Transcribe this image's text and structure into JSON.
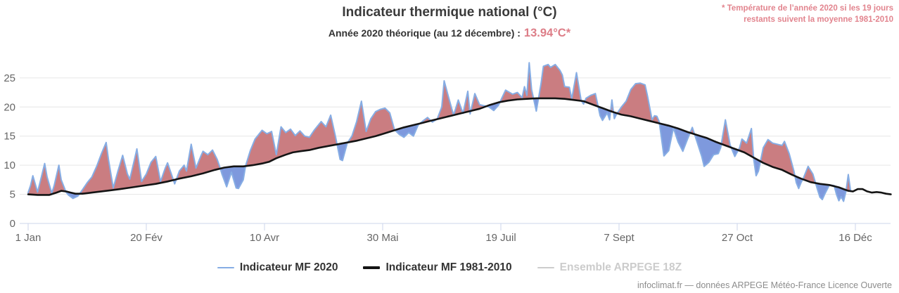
{
  "header": {
    "title": "Indicateur thermique national (°C)",
    "subtitle_label": "Année 2020 théorique (au 12 décembre) :",
    "subtitle_value": "13.94°C*",
    "annotation_line1": "* Température de l’année 2020 si les 19 jours",
    "annotation_line2": "restants suivent la moyenne 1981-2010"
  },
  "footer": {
    "credit": "infoclimat.fr — données ARPEGE Météo-France Licence Ouverte"
  },
  "colors": {
    "title_text": "#3a3a3a",
    "accent_pink": "#dd7e88",
    "annotation_pink": "#e2848e",
    "axis_text": "#666666",
    "grid_line": "#e6e6e6",
    "axis_line": "#ccd6eb",
    "above_fill": "#ca7d81",
    "below_fill": "#7e99dd",
    "line_2020": "#86ade4",
    "line_mean": "#141414",
    "disabled_legend": "#cccccc"
  },
  "chart_data": {
    "type": "line",
    "title": "Indicateur thermique national (°C)",
    "subtitle": "Année 2020 théorique (au 12 décembre) : 13.94°C*",
    "unit": "°C",
    "grid": "horizontal",
    "legend_position": "bottom-center",
    "x_axis": {
      "tick_days": [
        1,
        51,
        101,
        151,
        201,
        251,
        301,
        351
      ],
      "tick_labels": [
        "1 Jan",
        "20 Fév",
        "10 Avr",
        "30 Mai",
        "19 Juil",
        "7 Sept",
        "27 Oct",
        "16 Déc"
      ]
    },
    "y_axis": {
      "ticks": [
        0,
        5,
        10,
        15,
        20,
        25
      ],
      "min": 0,
      "max": 28
    },
    "fills": {
      "above": "#ca7d81",
      "below": "#7e99dd"
    },
    "series": [
      {
        "name": "Indicateur MF 2020",
        "color": "#86ade4",
        "width": 2,
        "disabled": false,
        "points": [
          [
            1,
            5.3
          ],
          [
            2,
            6.5
          ],
          [
            3,
            8.2
          ],
          [
            5,
            5.4
          ],
          [
            6,
            7.0
          ],
          [
            8,
            10.3
          ],
          [
            9,
            8.0
          ],
          [
            11,
            5.2
          ],
          [
            12,
            6.5
          ],
          [
            14,
            10.0
          ],
          [
            15,
            7.5
          ],
          [
            17,
            5.4
          ],
          [
            18,
            4.9
          ],
          [
            20,
            4.3
          ],
          [
            22,
            4.7
          ],
          [
            23,
            5.2
          ],
          [
            24,
            5.8
          ],
          [
            26,
            7.0
          ],
          [
            28,
            8.0
          ],
          [
            30,
            9.8
          ],
          [
            32,
            12.0
          ],
          [
            34,
            13.9
          ],
          [
            35,
            11.0
          ],
          [
            37,
            6.1
          ],
          [
            39,
            9.0
          ],
          [
            41,
            11.7
          ],
          [
            43,
            8.5
          ],
          [
            44,
            7.6
          ],
          [
            46,
            11.0
          ],
          [
            47,
            12.8
          ],
          [
            49,
            7.2
          ],
          [
            51,
            8.5
          ],
          [
            53,
            10.5
          ],
          [
            55,
            11.5
          ],
          [
            57,
            7.2
          ],
          [
            59,
            9.5
          ],
          [
            60,
            10.4
          ],
          [
            62,
            8.0
          ],
          [
            63,
            6.8
          ],
          [
            65,
            9.0
          ],
          [
            67,
            10.0
          ],
          [
            68,
            9.0
          ],
          [
            70,
            13.6
          ],
          [
            72,
            9.5
          ],
          [
            74,
            11.5
          ],
          [
            75,
            12.4
          ],
          [
            77,
            11.8
          ],
          [
            79,
            12.6
          ],
          [
            81,
            11.0
          ],
          [
            82,
            9.8
          ],
          [
            83,
            8.5
          ],
          [
            85,
            6.3
          ],
          [
            87,
            8.8
          ],
          [
            89,
            6.1
          ],
          [
            90,
            6.0
          ],
          [
            92,
            7.5
          ],
          [
            93,
            9.9
          ],
          [
            95,
            12.5
          ],
          [
            97,
            14.5
          ],
          [
            100,
            16.0
          ],
          [
            102,
            15.4
          ],
          [
            104,
            15.8
          ],
          [
            106,
            11.8
          ],
          [
            108,
            16.6
          ],
          [
            110,
            15.6
          ],
          [
            112,
            16.2
          ],
          [
            114,
            15.1
          ],
          [
            116,
            15.9
          ],
          [
            118,
            15.0
          ],
          [
            120,
            14.8
          ],
          [
            122,
            16.0
          ],
          [
            125,
            17.5
          ],
          [
            127,
            16.6
          ],
          [
            129,
            18.6
          ],
          [
            131,
            15.0
          ],
          [
            133,
            11.0
          ],
          [
            134,
            10.8
          ],
          [
            136,
            13.8
          ],
          [
            138,
            15.0
          ],
          [
            140,
            17.5
          ],
          [
            142,
            21.0
          ],
          [
            144,
            15.8
          ],
          [
            146,
            18.0
          ],
          [
            148,
            19.2
          ],
          [
            150,
            19.6
          ],
          [
            152,
            19.8
          ],
          [
            154,
            19.0
          ],
          [
            156,
            16.1
          ],
          [
            158,
            15.3
          ],
          [
            160,
            14.8
          ],
          [
            162,
            15.6
          ],
          [
            164,
            15.0
          ],
          [
            166,
            16.9
          ],
          [
            168,
            17.6
          ],
          [
            170,
            18.2
          ],
          [
            172,
            17.4
          ],
          [
            174,
            17.9
          ],
          [
            176,
            20.0
          ],
          [
            177,
            24.5
          ],
          [
            179,
            21.5
          ],
          [
            181,
            18.6
          ],
          [
            183,
            21.2
          ],
          [
            185,
            18.9
          ],
          [
            187,
            22.7
          ],
          [
            188,
            18.8
          ],
          [
            190,
            22.3
          ],
          [
            192,
            20.4
          ],
          [
            194,
            20.2
          ],
          [
            196,
            20.0
          ],
          [
            198,
            19.4
          ],
          [
            200,
            20.3
          ],
          [
            203,
            22.9
          ],
          [
            206,
            22.2
          ],
          [
            208,
            22.5
          ],
          [
            210,
            21.6
          ],
          [
            211,
            23.5
          ],
          [
            212,
            22.0
          ],
          [
            213,
            27.6
          ],
          [
            214,
            23.0
          ],
          [
            216,
            19.3
          ],
          [
            218,
            24.0
          ],
          [
            219,
            27.0
          ],
          [
            221,
            27.3
          ],
          [
            222,
            26.8
          ],
          [
            224,
            27.3
          ],
          [
            226,
            26.3
          ],
          [
            227,
            25.5
          ],
          [
            228,
            23.5
          ],
          [
            230,
            23.4
          ],
          [
            231,
            21.4
          ],
          [
            233,
            25.9
          ],
          [
            235,
            21.1
          ],
          [
            236,
            20.5
          ],
          [
            237,
            21.5
          ],
          [
            239,
            22.0
          ],
          [
            241,
            22.3
          ],
          [
            243,
            18.5
          ],
          [
            244,
            17.7
          ],
          [
            246,
            19.0
          ],
          [
            247,
            17.8
          ],
          [
            248,
            21.2
          ],
          [
            249,
            18.0
          ],
          [
            250,
            18.8
          ],
          [
            252,
            20.0
          ],
          [
            254,
            21.0
          ],
          [
            256,
            23.0
          ],
          [
            258,
            24.0
          ],
          [
            260,
            24.1
          ],
          [
            262,
            23.8
          ],
          [
            263,
            22.0
          ],
          [
            265,
            17.8
          ],
          [
            266,
            18.5
          ],
          [
            267,
            18.4
          ],
          [
            268,
            17.5
          ],
          [
            270,
            11.6
          ],
          [
            272,
            12.5
          ],
          [
            274,
            16.4
          ],
          [
            276,
            14.0
          ],
          [
            278,
            12.4
          ],
          [
            280,
            14.5
          ],
          [
            282,
            16.5
          ],
          [
            284,
            14.0
          ],
          [
            286,
            11.5
          ],
          [
            287,
            9.8
          ],
          [
            289,
            10.5
          ],
          [
            291,
            11.8
          ],
          [
            293,
            12.0
          ],
          [
            294,
            13.0
          ],
          [
            296,
            17.8
          ],
          [
            298,
            13.5
          ],
          [
            300,
            11.5
          ],
          [
            302,
            13.0
          ],
          [
            303,
            14.5
          ],
          [
            305,
            13.8
          ],
          [
            307,
            16.3
          ],
          [
            308,
            11.0
          ],
          [
            309,
            8.2
          ],
          [
            310,
            9.0
          ],
          [
            312,
            13.0
          ],
          [
            314,
            14.4
          ],
          [
            316,
            13.8
          ],
          [
            318,
            13.6
          ],
          [
            320,
            13.4
          ],
          [
            321,
            14.1
          ],
          [
            323,
            12.0
          ],
          [
            325,
            9.0
          ],
          [
            326,
            7.0
          ],
          [
            327,
            6.0
          ],
          [
            328,
            7.0
          ],
          [
            329,
            7.8
          ],
          [
            331,
            9.8
          ],
          [
            333,
            8.5
          ],
          [
            335,
            5.8
          ],
          [
            336,
            4.5
          ],
          [
            337,
            4.1
          ],
          [
            338,
            5.0
          ],
          [
            340,
            6.6
          ],
          [
            342,
            6.5
          ],
          [
            343,
            5.0
          ],
          [
            344,
            3.9
          ],
          [
            345,
            4.6
          ],
          [
            346,
            3.8
          ],
          [
            347,
            5.5
          ],
          [
            348,
            8.4
          ],
          [
            349,
            5.5
          ]
        ]
      },
      {
        "name": "Indicateur MF 1981-2010",
        "color": "#141414",
        "width": 2.6,
        "disabled": false,
        "points": [
          [
            1,
            5.0
          ],
          [
            5,
            4.9
          ],
          [
            10,
            4.9
          ],
          [
            13,
            5.3
          ],
          [
            15,
            5.6
          ],
          [
            17,
            5.5
          ],
          [
            19,
            5.3
          ],
          [
            21,
            5.1
          ],
          [
            24,
            5.1
          ],
          [
            28,
            5.3
          ],
          [
            32,
            5.5
          ],
          [
            36,
            5.7
          ],
          [
            40,
            5.9
          ],
          [
            45,
            6.2
          ],
          [
            50,
            6.5
          ],
          [
            55,
            6.8
          ],
          [
            60,
            7.2
          ],
          [
            65,
            7.7
          ],
          [
            70,
            8.1
          ],
          [
            75,
            8.6
          ],
          [
            80,
            9.2
          ],
          [
            84,
            9.6
          ],
          [
            88,
            9.8
          ],
          [
            92,
            9.8
          ],
          [
            96,
            10.0
          ],
          [
            100,
            10.3
          ],
          [
            103,
            10.6
          ],
          [
            106,
            11.2
          ],
          [
            110,
            11.8
          ],
          [
            113,
            12.2
          ],
          [
            116,
            12.4
          ],
          [
            120,
            12.6
          ],
          [
            124,
            13.0
          ],
          [
            128,
            13.3
          ],
          [
            132,
            13.6
          ],
          [
            136,
            13.9
          ],
          [
            140,
            14.2
          ],
          [
            144,
            14.6
          ],
          [
            148,
            15.0
          ],
          [
            152,
            15.5
          ],
          [
            156,
            16.0
          ],
          [
            160,
            16.5
          ],
          [
            164,
            16.9
          ],
          [
            168,
            17.3
          ],
          [
            172,
            17.7
          ],
          [
            176,
            18.1
          ],
          [
            180,
            18.5
          ],
          [
            184,
            18.9
          ],
          [
            188,
            19.3
          ],
          [
            192,
            19.7
          ],
          [
            196,
            20.3
          ],
          [
            200,
            20.8
          ],
          [
            204,
            21.1
          ],
          [
            208,
            21.3
          ],
          [
            212,
            21.4
          ],
          [
            216,
            21.5
          ],
          [
            220,
            21.5
          ],
          [
            224,
            21.5
          ],
          [
            228,
            21.4
          ],
          [
            232,
            21.2
          ],
          [
            236,
            21.0
          ],
          [
            240,
            20.4
          ],
          [
            244,
            19.8
          ],
          [
            248,
            19.2
          ],
          [
            252,
            18.7
          ],
          [
            256,
            18.4
          ],
          [
            260,
            18.0
          ],
          [
            264,
            17.6
          ],
          [
            268,
            17.2
          ],
          [
            272,
            16.8
          ],
          [
            276,
            16.3
          ],
          [
            280,
            15.7
          ],
          [
            284,
            15.2
          ],
          [
            288,
            14.7
          ],
          [
            292,
            14.0
          ],
          [
            296,
            13.4
          ],
          [
            300,
            12.8
          ],
          [
            304,
            12.2
          ],
          [
            308,
            11.3
          ],
          [
            312,
            10.4
          ],
          [
            316,
            9.7
          ],
          [
            320,
            9.2
          ],
          [
            324,
            8.4
          ],
          [
            328,
            7.7
          ],
          [
            332,
            7.1
          ],
          [
            336,
            6.8
          ],
          [
            340,
            6.6
          ],
          [
            344,
            6.2
          ],
          [
            348,
            5.6
          ],
          [
            350,
            5.5
          ],
          [
            352,
            5.9
          ],
          [
            354,
            5.9
          ],
          [
            356,
            5.5
          ],
          [
            358,
            5.3
          ],
          [
            360,
            5.4
          ],
          [
            362,
            5.3
          ],
          [
            364,
            5.1
          ],
          [
            366,
            5.0
          ]
        ]
      },
      {
        "name": "Ensemble ARPEGE 18Z",
        "color": "#cccccc",
        "width": 2,
        "disabled": true,
        "points": []
      }
    ]
  }
}
